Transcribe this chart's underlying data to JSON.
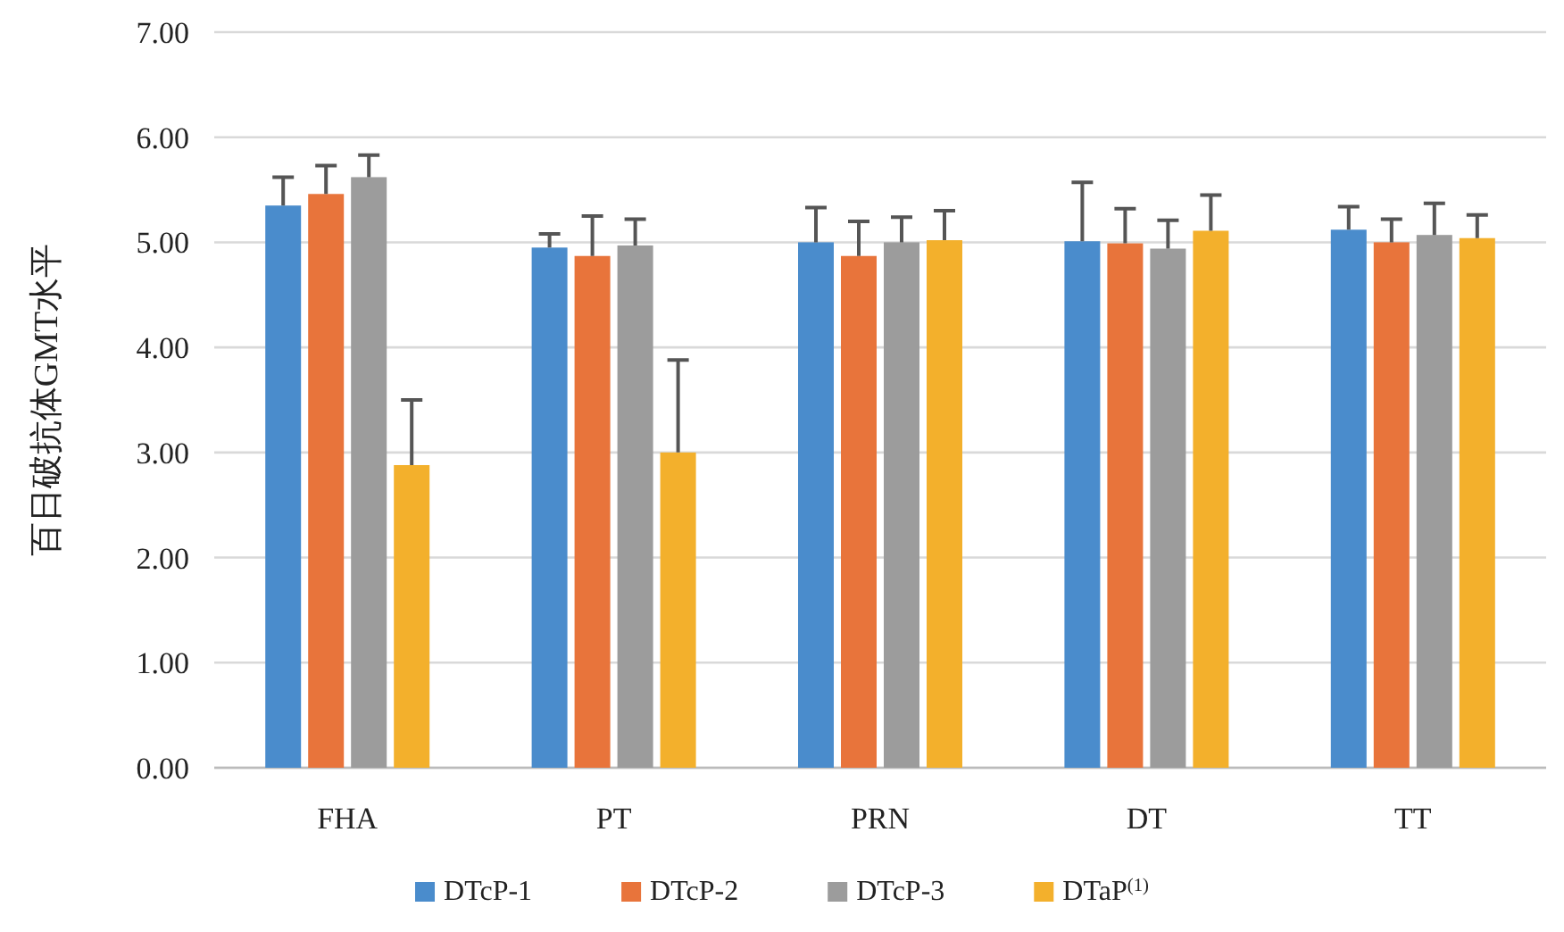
{
  "chart_data": {
    "type": "bar",
    "ylabel": "百日破抗体GMT水平",
    "categories": [
      "FHA",
      "PT",
      "PRN",
      "DT",
      "TT"
    ],
    "ylim": [
      0,
      7
    ],
    "yticks": [
      {
        "value": 0,
        "label": "0.00"
      },
      {
        "value": 1,
        "label": "1.00"
      },
      {
        "value": 2,
        "label": "2.00"
      },
      {
        "value": 3,
        "label": "3.00"
      },
      {
        "value": 4,
        "label": "4.00"
      },
      {
        "value": 5,
        "label": "5.00"
      },
      {
        "value": 6,
        "label": "6.00"
      },
      {
        "value": 7,
        "label": "7.00"
      }
    ],
    "grid": "y",
    "legend": "bottom",
    "series": [
      {
        "name": "DTcP-1",
        "color": "#4a8ccc",
        "values": [
          5.35,
          4.95,
          5.0,
          5.01,
          5.12
        ],
        "errors": [
          [
            5.35,
            5.62
          ],
          [
            4.95,
            5.08
          ],
          [
            5.0,
            5.33
          ],
          [
            5.01,
            5.57
          ],
          [
            5.12,
            5.34
          ]
        ]
      },
      {
        "name": "DTcP-2",
        "color": "#e8743b",
        "values": [
          5.46,
          4.87,
          4.87,
          4.99,
          5.0
        ],
        "errors": [
          [
            5.46,
            5.73
          ],
          [
            4.87,
            5.25
          ],
          [
            4.87,
            5.2
          ],
          [
            4.99,
            5.32
          ],
          [
            5.0,
            5.22
          ]
        ]
      },
      {
        "name": "DTcP-3",
        "color": "#9c9c9c",
        "values": [
          5.62,
          4.97,
          5.0,
          4.94,
          5.07
        ],
        "errors": [
          [
            5.62,
            5.83
          ],
          [
            4.97,
            5.22
          ],
          [
            5.0,
            5.24
          ],
          [
            4.94,
            5.21
          ],
          [
            5.07,
            5.37
          ]
        ]
      },
      {
        "name": "DTaP$^{(1)}$",
        "color": "#f3b02c",
        "values": [
          2.88,
          3.0,
          5.02,
          5.11,
          5.04
        ],
        "errors": [
          [
            2.88,
            3.5
          ],
          [
            3.0,
            3.88
          ],
          [
            5.02,
            5.3
          ],
          [
            5.11,
            5.45
          ],
          [
            5.04,
            5.26
          ]
        ]
      }
    ]
  }
}
